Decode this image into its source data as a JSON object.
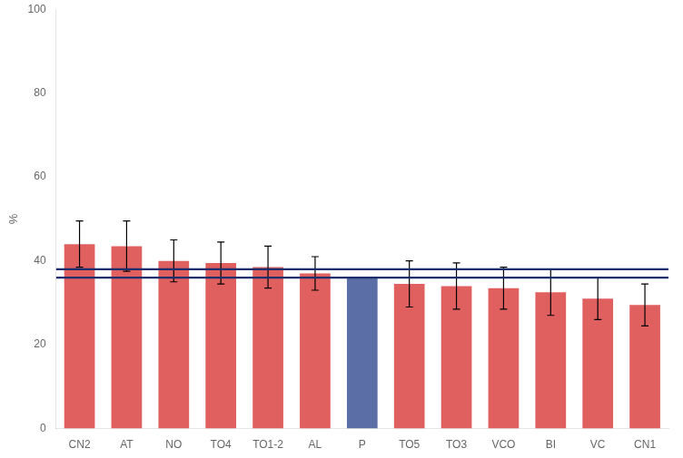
{
  "chart_data": {
    "type": "bar",
    "categories": [
      "CN2",
      "AT",
      "NO",
      "TO4",
      "TO1-2",
      "AL",
      "P",
      "TO5",
      "TO3",
      "VCO",
      "BI",
      "VC",
      "CN1"
    ],
    "values": [
      44,
      43.5,
      40,
      39.5,
      38.5,
      37,
      36,
      34.5,
      34,
      33.5,
      32.5,
      31,
      29.5
    ],
    "errors_upper": [
      5.5,
      6,
      5,
      5,
      5,
      4,
      0,
      5.5,
      5.5,
      5,
      5.5,
      5,
      5
    ],
    "errors_lower": [
      5.5,
      6,
      5,
      5,
      5,
      4,
      0,
      5.5,
      5.5,
      5,
      5.5,
      5,
      5
    ],
    "colors": [
      "#e06060",
      "#e06060",
      "#e06060",
      "#e06060",
      "#e06060",
      "#e06060",
      "#5b6fa6",
      "#e06060",
      "#e06060",
      "#e06060",
      "#e06060",
      "#e06060",
      "#e06060"
    ],
    "reference_lines": [
      {
        "value": 38.0,
        "color": "#1a2e6e"
      },
      {
        "value": 36.0,
        "color": "#1a2e6e"
      }
    ],
    "ylabel": "%",
    "ylim": [
      0,
      100
    ],
    "yticks": [
      0,
      20,
      40,
      60,
      80,
      100
    ],
    "grid": false
  }
}
